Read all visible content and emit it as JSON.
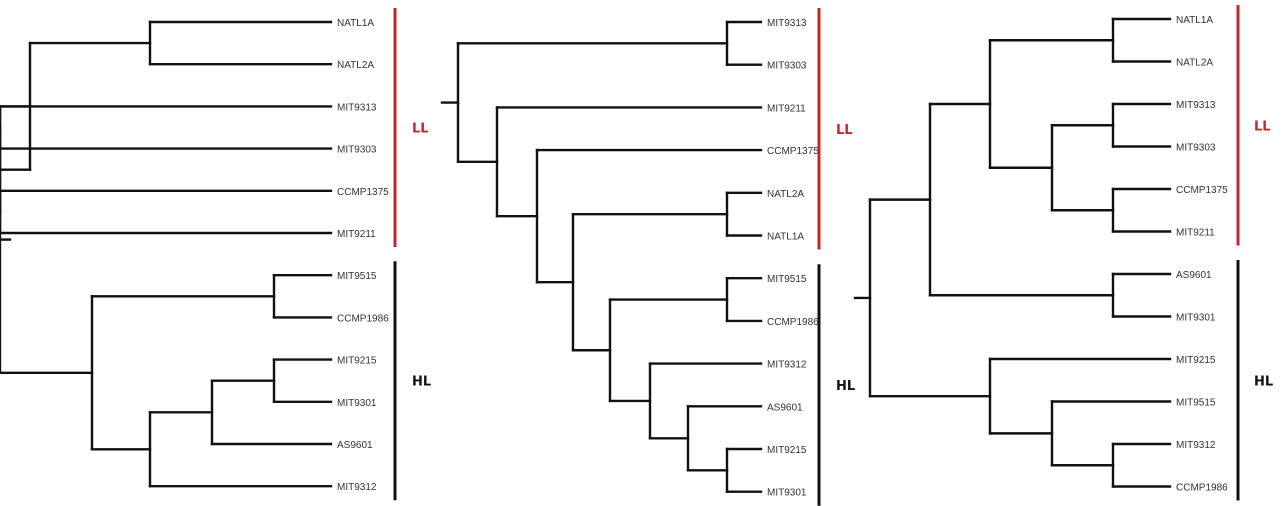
{
  "colors": {
    "edge": "#111111",
    "leaf_text": "#333333",
    "LL": "#c0282d",
    "HL": "#111111"
  },
  "groups": [
    {
      "key": "LL",
      "label": "LL",
      "color": "#c0282d"
    },
    {
      "key": "HL",
      "label": "HL",
      "color": "#111111"
    }
  ],
  "trees": [
    {
      "leaves": [
        "NATL1A",
        "NATL2A",
        "MIT9313",
        "MIT9303",
        "CCMP1375",
        "MIT9211",
        "MIT9515",
        "CCMP1986",
        "MIT9215",
        "MIT9301",
        "AS9601",
        "MIT9312"
      ],
      "groups": {
        "LL": [
          "NATL1A",
          "NATL2A",
          "MIT9313",
          "MIT9303",
          "CCMP1375",
          "MIT9211"
        ],
        "HL": [
          "MIT9515",
          "CCMP1986",
          "MIT9215",
          "MIT9301",
          "AS9601",
          "MIT9312"
        ]
      },
      "topology": [
        [
          [
            [
              "NATL1A",
              "NATL2A"
            ],
            [
              [
                "MIT9313",
                "MIT9303"
              ],
              [
                "CCMP1375",
                "MIT9211"
              ]
            ]
          ]
        ],
        [
          [
            "MIT9515",
            "CCMP1986"
          ],
          [
            [
              [
                "MIT9215",
                "MIT9301"
              ],
              "AS9601"
            ],
            "MIT9312"
          ]
        ]
      ]
    },
    {
      "leaves": [
        "MIT9313",
        "MIT9303",
        "MIT9211",
        "CCMP1375",
        "NATL2A",
        "NATL1A",
        "MIT9515",
        "CCMP1986",
        "MIT9312",
        "AS9601",
        "MIT9215",
        "MIT9301"
      ],
      "groups": {
        "LL": [
          "MIT9313",
          "MIT9303",
          "MIT9211",
          "CCMP1375",
          "NATL2A",
          "NATL1A"
        ],
        "HL": [
          "MIT9515",
          "CCMP1986",
          "MIT9312",
          "AS9601",
          "MIT9215",
          "MIT9301"
        ]
      },
      "topology": [
        [
          "MIT9313",
          "MIT9303"
        ],
        [
          "MIT9211",
          [
            "CCMP1375",
            [
              [
                "NATL2A",
                "NATL1A"
              ],
              [
                [
                  "MIT9515",
                  "CCMP1986"
                ],
                [
                  "MIT9312",
                  [
                    "AS9601",
                    [
                      "MIT9215",
                      "MIT9301"
                    ]
                  ]
                ]
              ]
            ]
          ]
        ]
      ]
    },
    {
      "leaves": [
        "NATL1A",
        "NATL2A",
        "MIT9313",
        "MIT9303",
        "CCMP1375",
        "MIT9211",
        "AS9601",
        "MIT9301",
        "MIT9215",
        "MIT9515",
        "MIT9312",
        "CCMP1986"
      ],
      "groups": {
        "LL": [
          "NATL1A",
          "NATL2A",
          "MIT9313",
          "MIT9303",
          "CCMP1375",
          "MIT9211"
        ],
        "HL": [
          "AS9601",
          "MIT9301",
          "MIT9215",
          "MIT9515",
          "MIT9312",
          "CCMP1986"
        ]
      },
      "topology": [
        [
          [
            [
              "NATL1A",
              "NATL2A"
            ],
            [
              [
                "MIT9313",
                "MIT9303"
              ],
              [
                "CCMP1375",
                "MIT9211"
              ]
            ]
          ],
          [
            "AS9601",
            "MIT9301"
          ]
        ],
        [
          "MIT9215",
          [
            "MIT9515",
            [
              "MIT9312",
              "CCMP1986"
            ]
          ]
        ]
      ]
    }
  ]
}
